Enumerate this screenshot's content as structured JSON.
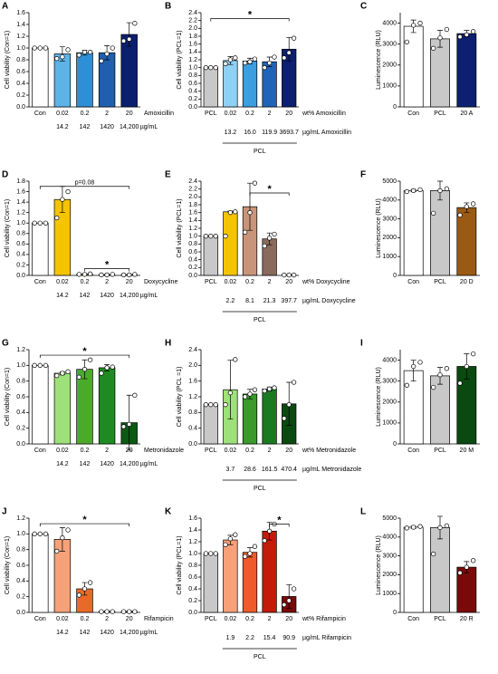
{
  "chart_data": [
    {
      "type": "bar",
      "label": "A",
      "ylabel": "Cell viability (Con=1)",
      "categories": [
        "Con",
        "0.02",
        "0.2",
        "2",
        "20"
      ],
      "xlabel": "Amoxicillin",
      "sublabels": [
        null,
        "14.2",
        "142",
        "1420",
        "14,200"
      ],
      "sublabel_unit": "µg/mL",
      "values": [
        1,
        0.9,
        0.92,
        0.92,
        1.23
      ],
      "errors": [
        0,
        0.12,
        0.04,
        0.12,
        0.2
      ],
      "points": [
        [
          1,
          1,
          1
        ],
        [
          0.82,
          0.85,
          0.97
        ],
        [
          0.88,
          0.93,
          0.93
        ],
        [
          0.78,
          0.9,
          1.0
        ],
        [
          1.12,
          1.15,
          1.42
        ]
      ],
      "colors": [
        "#ffffff",
        "#5db3e6",
        "#2e8fd6",
        "#1f5fb0",
        "#0a1f6e"
      ],
      "ylim": [
        0,
        1.6
      ],
      "yticks": [
        {
          "value": 0,
          "label": "0.0"
        },
        0.2,
        0.4,
        0.6,
        0.8,
        {
          "value": 1,
          "label": "1.0"
        },
        1.2,
        1.4,
        1.6
      ]
    },
    {
      "type": "bar",
      "label": "B",
      "ylabel": "Cell viability (PCL=1)",
      "categories": [
        "PCL",
        "0.02",
        "0.2",
        "2",
        "20"
      ],
      "xlabel": "wt% Amoxicillin",
      "sublabels": [
        null,
        "13.2",
        "16.0",
        "119.9",
        "3693.7"
      ],
      "sublabel_unit": "µg/mL Amoxicillin",
      "group": "PCL",
      "values": [
        1,
        1.18,
        1.17,
        1.15,
        1.47
      ],
      "errors": [
        0,
        0.1,
        0.07,
        0.12,
        0.3
      ],
      "points": [
        [
          1,
          1,
          1
        ],
        [
          1.1,
          1.2,
          1.25
        ],
        [
          1.12,
          1.15,
          1.22
        ],
        [
          1.0,
          1.12,
          1.27
        ],
        [
          1.25,
          1.38,
          1.75
        ]
      ],
      "colors": [
        "#c8c8c8",
        "#8fd0f5",
        "#3a9ee0",
        "#1f64b8",
        "#0c1f70"
      ],
      "ylim": [
        0,
        2.4
      ],
      "yticks": [
        {
          "value": 0,
          "label": "0.0"
        },
        0.2,
        0.4,
        0.6,
        0.8,
        {
          "value": 1,
          "label": "1.0"
        },
        1.2,
        1.4,
        1.6,
        1.8,
        {
          "value": 2,
          "label": "2.0"
        },
        2.2,
        2.4
      ],
      "annotations": [
        {
          "text": "*",
          "from": 0,
          "to": 4,
          "y": 2.25
        }
      ]
    },
    {
      "type": "bar",
      "label": "C",
      "ylabel": "Luminescence (RLU)",
      "categories": [
        "Con",
        "PCL",
        "20 A"
      ],
      "values": [
        3850,
        3250,
        3500
      ],
      "errors": [
        300,
        400,
        150
      ],
      "points": [
        [
          3100,
          3900,
          4000
        ],
        [
          2800,
          3300,
          3700
        ],
        [
          3350,
          3450,
          3600
        ]
      ],
      "colors": [
        "#ffffff",
        "#c8c8c8",
        "#0c1f70"
      ],
      "ylim": [
        0,
        4500
      ],
      "yticks": [
        0,
        1000,
        2000,
        3000,
        4000
      ]
    },
    {
      "type": "bar",
      "label": "D",
      "ylabel": "Cell viability (Con=1)",
      "categories": [
        "Con",
        "0.02",
        "0.2",
        "2",
        "20"
      ],
      "xlabel": "Doxycycline",
      "sublabels": [
        null,
        "14.2",
        "142",
        "1420",
        "14,200"
      ],
      "sublabel_unit": "µg/mL",
      "values": [
        1,
        1.45,
        0.02,
        0.01,
        0.01
      ],
      "errors": [
        0,
        0.25,
        0.01,
        0.01,
        0.01
      ],
      "points": [
        [
          1,
          1,
          1
        ],
        [
          1.1,
          1.45,
          1.6
        ],
        [
          0.02,
          0.02,
          0.03
        ],
        [
          0.01,
          0.01,
          0.02
        ],
        [
          0.01,
          0.01,
          0.02
        ]
      ],
      "colors": [
        "#ffffff",
        "#f5c400",
        "#f5c400",
        "#f5c400",
        "#f5c400"
      ],
      "ylim": [
        0,
        1.8
      ],
      "yticks": [
        {
          "value": 0,
          "label": "0.0"
        },
        0.2,
        0.4,
        0.6,
        0.8,
        {
          "value": 1,
          "label": "1.0"
        },
        1.2,
        1.4,
        1.6,
        1.8
      ],
      "annotations": [
        {
          "text": "p=0.08",
          "from": 0,
          "to": 4,
          "y": 1.7
        },
        {
          "text": "*",
          "from": 2,
          "to": 4,
          "y": 0.13
        }
      ]
    },
    {
      "type": "bar",
      "label": "E",
      "ylabel": "Cell viability (PCL=1)",
      "categories": [
        "PCL",
        "0.02",
        "0.2",
        "2",
        "20"
      ],
      "xlabel": "wt% Doxycycline",
      "sublabels": [
        null,
        "2.2",
        "8.1",
        "21.3",
        "397.7"
      ],
      "sublabel_unit": "µg/mL Doxycycline",
      "group": "PCL",
      "values": [
        1,
        1.62,
        1.75,
        0.93,
        0.01
      ],
      "errors": [
        0,
        0.02,
        0.6,
        0.15,
        0.01
      ],
      "points": [
        [
          1,
          1,
          1
        ],
        [
          1.0,
          1.6,
          1.62
        ],
        [
          1.1,
          1.6,
          2.35
        ],
        [
          0.75,
          0.95,
          1.05
        ],
        [
          0.01,
          0.01,
          0.01
        ]
      ],
      "colors": [
        "#c8c8c8",
        "#f5c400",
        "#c9957a",
        "#8a6a5c",
        "#5c4037"
      ],
      "ylim": [
        0,
        2.4
      ],
      "yticks": [
        {
          "value": 0,
          "label": "0.0"
        },
        0.2,
        0.4,
        0.6,
        0.8,
        {
          "value": 1,
          "label": "1.0"
        },
        1.2,
        1.4,
        1.6,
        1.8,
        {
          "value": 2,
          "label": "2.0"
        },
        2.2,
        2.4
      ],
      "annotations": [
        {
          "text": "*",
          "from": 2,
          "to": 4,
          "y": 2.1
        }
      ]
    },
    {
      "type": "bar",
      "label": "F",
      "ylabel": "Luminescence (RLU)",
      "categories": [
        "Con",
        "PCL",
        "20 D"
      ],
      "values": [
        4500,
        4500,
        3600
      ],
      "errors": [
        60,
        500,
        250
      ],
      "points": [
        [
          4450,
          4500,
          4550
        ],
        [
          3300,
          4500,
          4600
        ],
        [
          3200,
          3650,
          3800
        ]
      ],
      "colors": [
        "#ffffff",
        "#c8c8c8",
        "#9a5a14"
      ],
      "ylim": [
        0,
        5000
      ],
      "yticks": [
        0,
        1000,
        2000,
        3000,
        4000,
        5000
      ]
    },
    {
      "type": "bar",
      "label": "G",
      "ylabel": "Cell viability (Con=1)",
      "categories": [
        "Con",
        "0.02",
        "0.2",
        "2",
        "20"
      ],
      "xlabel": "Metronidazole",
      "sublabels": [
        null,
        "14.2",
        "142",
        "1420",
        "14,200"
      ],
      "sublabel_unit": "µg/mL",
      "values": [
        1,
        0.9,
        0.95,
        0.97,
        0.27
      ],
      "errors": [
        0,
        0.02,
        0.12,
        0.04,
        0.35
      ],
      "points": [
        [
          1,
          1,
          1
        ],
        [
          0.87,
          0.9,
          0.92
        ],
        [
          0.85,
          0.95,
          1.07
        ],
        [
          0.9,
          0.97,
          0.98
        ],
        [
          0.22,
          0.25,
          0.62
        ]
      ],
      "colors": [
        "#ffffff",
        "#9ee07a",
        "#4caa2a",
        "#1f8a22",
        "#0a5a12"
      ],
      "ylim": [
        0,
        1.2
      ],
      "yticks": [
        {
          "value": 0,
          "label": "0.0"
        },
        0.2,
        0.4,
        0.6,
        0.8,
        {
          "value": 1,
          "label": "1.0"
        },
        1.2
      ],
      "annotations": [
        {
          "text": "*",
          "from": 0,
          "to": 4,
          "y": 1.13
        }
      ]
    },
    {
      "type": "bar",
      "label": "H",
      "ylabel": "Cell viability (PCL =1)",
      "categories": [
        "PCL",
        "0.02",
        "0.2",
        "2",
        "20"
      ],
      "xlabel": "wt% Metronidazole",
      "sublabels": [
        null,
        "3.7",
        "28.6",
        "161.5",
        "470.4"
      ],
      "sublabel_unit": "µg/mL Metronidazole",
      "group": "PCL",
      "values": [
        1,
        1.38,
        1.27,
        1.4,
        1.02
      ],
      "errors": [
        0,
        0.75,
        0.12,
        0.05,
        0.55
      ],
      "points": [
        [
          1,
          1,
          1
        ],
        [
          1.0,
          1.3,
          2.15
        ],
        [
          1.2,
          1.27,
          1.38
        ],
        [
          1.35,
          1.4,
          1.43
        ],
        [
          0.65,
          1.0,
          1.57
        ]
      ],
      "colors": [
        "#c8c8c8",
        "#9ee07a",
        "#3a9a2a",
        "#1a7a20",
        "#0a4a10"
      ],
      "ylim": [
        0,
        2.4
      ],
      "yticks": [
        {
          "value": 0,
          "label": "0.0"
        },
        0.4,
        0.8,
        1.2,
        1.6,
        {
          "value": 2,
          "label": "2.0"
        },
        2.4
      ]
    },
    {
      "type": "bar",
      "label": "I",
      "ylabel": "Luminescence (RLU)",
      "categories": [
        "Con",
        "PCL",
        "20 M"
      ],
      "values": [
        3500,
        3250,
        3700
      ],
      "errors": [
        500,
        400,
        600
      ],
      "points": [
        [
          2800,
          3700,
          3900
        ],
        [
          2700,
          3300,
          3600
        ],
        [
          2900,
          3700,
          4300
        ]
      ],
      "colors": [
        "#ffffff",
        "#c8c8c8",
        "#0a4a10"
      ],
      "ylim": [
        0,
        4500
      ],
      "yticks": [
        0,
        1000,
        2000,
        3000,
        4000
      ]
    },
    {
      "type": "bar",
      "label": "J",
      "ylabel": "Cell viability (Con=1)",
      "categories": [
        "Con",
        "0.02",
        "0.2",
        "2",
        "20"
      ],
      "xlabel": "Rifampicin",
      "sublabels": [
        null,
        "14.2",
        "142",
        "1420",
        "14,200"
      ],
      "sublabel_unit": "µg/mL",
      "values": [
        1,
        0.93,
        0.3,
        0.01,
        0.01
      ],
      "errors": [
        0,
        0.15,
        0.08,
        0.01,
        0.01
      ],
      "points": [
        [
          1,
          1,
          1
        ],
        [
          0.78,
          0.95,
          1.05
        ],
        [
          0.22,
          0.3,
          0.38
        ],
        [
          0.01,
          0.01,
          0.01
        ],
        [
          0.01,
          0.01,
          0.01
        ]
      ],
      "colors": [
        "#ffffff",
        "#f5a27a",
        "#e86a2a",
        "#e86a2a",
        "#e86a2a"
      ],
      "ylim": [
        0,
        1.2
      ],
      "yticks": [
        {
          "value": 0,
          "label": "0.0"
        },
        0.2,
        0.4,
        0.6,
        0.8,
        {
          "value": 1,
          "label": "1.0"
        },
        1.2
      ],
      "annotations": [
        {
          "text": "*",
          "from": 0,
          "to": 4,
          "y": 1.13
        }
      ]
    },
    {
      "type": "bar",
      "label": "K",
      "ylabel": "Cell viability (PCL=1)",
      "categories": [
        "PCL",
        "0.02",
        "0.2",
        "2",
        "20"
      ],
      "xlabel": "wt% Rifampicin",
      "sublabels": [
        null,
        "1.9",
        "2.2",
        "15.4",
        "90.9"
      ],
      "sublabel_unit": "µg/mL Rifampicin",
      "group": "PCL",
      "values": [
        1,
        1.23,
        1.02,
        1.38,
        0.27
      ],
      "errors": [
        0,
        0.08,
        0.08,
        0.15,
        0.2
      ],
      "points": [
        [
          1,
          1,
          1
        ],
        [
          1.15,
          1.25,
          1.32
        ],
        [
          0.95,
          1.0,
          1.12
        ],
        [
          1.22,
          1.38,
          1.5
        ],
        [
          0.13,
          0.2,
          0.4
        ]
      ],
      "colors": [
        "#c8c8c8",
        "#f7a07a",
        "#ee5a2a",
        "#c41a0a",
        "#7a0a0a"
      ],
      "ylim": [
        0,
        1.6
      ],
      "yticks": [
        {
          "value": 0,
          "label": "0.0"
        },
        0.2,
        0.4,
        0.6,
        0.8,
        {
          "value": 1,
          "label": "1.0"
        },
        1.2,
        1.4,
        1.6
      ],
      "annotations": [
        {
          "text": "*",
          "from": 3,
          "to": 4,
          "y": 1.5
        }
      ]
    },
    {
      "type": "bar",
      "label": "L",
      "ylabel": "Luminescence (RLU)",
      "categories": [
        "Con",
        "PCL",
        "20 R"
      ],
      "values": [
        4520,
        4500,
        2400
      ],
      "errors": [
        60,
        600,
        300
      ],
      "points": [
        [
          4480,
          4520,
          4560
        ],
        [
          3100,
          4500,
          4600
        ],
        [
          2100,
          2400,
          2750
        ]
      ],
      "colors": [
        "#ffffff",
        "#c8c8c8",
        "#7a0a0a"
      ],
      "ylim": [
        0,
        5000
      ],
      "yticks": [
        0,
        1000,
        2000,
        3000,
        4000,
        5000
      ]
    }
  ]
}
